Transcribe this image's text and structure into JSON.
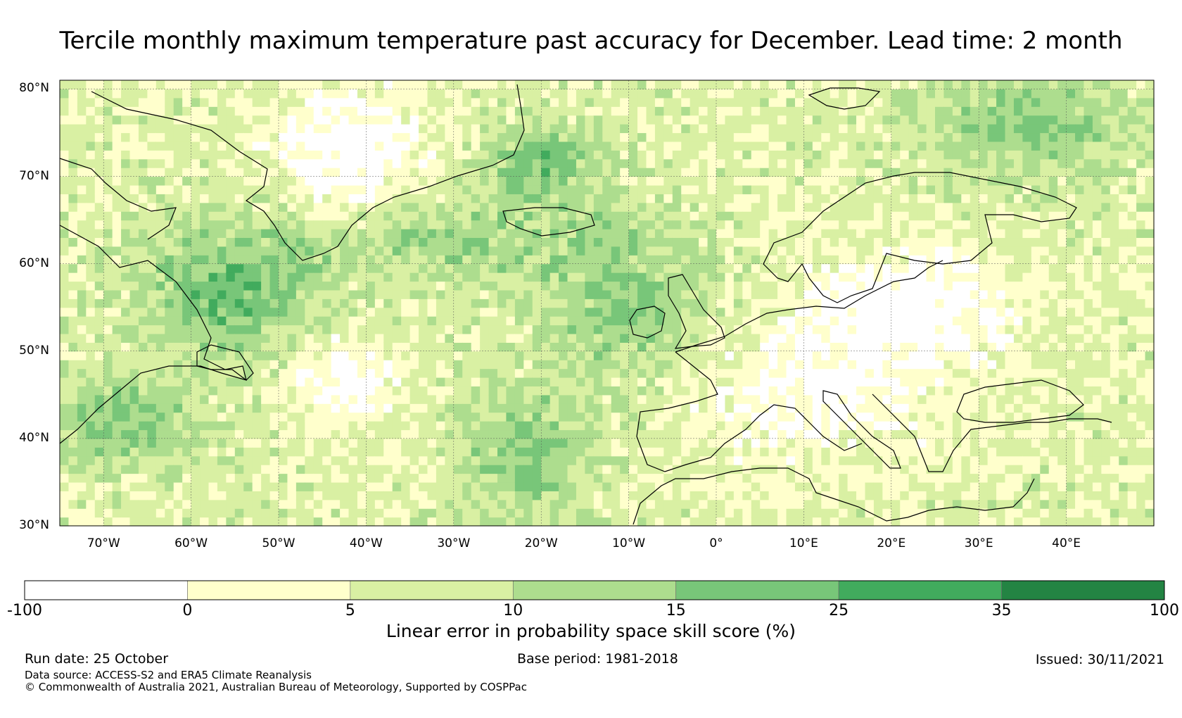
{
  "title": "Tercile monthly maximum temperature past accuracy for December. Lead time: 2 month",
  "map": {
    "lat_labels": [
      "80°N",
      "70°N",
      "60°N",
      "50°N",
      "40°N",
      "30°N"
    ],
    "lon_labels": [
      "70°W",
      "60°W",
      "50°W",
      "40°W",
      "30°W",
      "20°W",
      "10°W",
      "0°",
      "10°E",
      "20°E",
      "30°E",
      "40°E"
    ],
    "extent": {
      "lon_min": -75,
      "lon_max": 50,
      "lat_min": 30,
      "lat_max": 81
    }
  },
  "colorbar": {
    "ticks": [
      "-100",
      "0",
      "5",
      "10",
      "15",
      "25",
      "35",
      "100"
    ],
    "colors": [
      "#ffffff",
      "#ffffcc",
      "#d9f0a3",
      "#addd8e",
      "#78c679",
      "#41ab5d",
      "#238443"
    ],
    "label": "Linear error in probability space skill score (%)"
  },
  "footer": {
    "run_date": "Run date: 25 October",
    "base_period": "Base period: 1981-2018",
    "issued": "Issued: 30/11/2021",
    "data_source": "Data source: ACCESS-S2 and ERA5 Climate Reanalysis",
    "copyright": "© Commonwealth of Australia 2021, Australian Bureau of Meteorology, Supported by COSPPac"
  }
}
